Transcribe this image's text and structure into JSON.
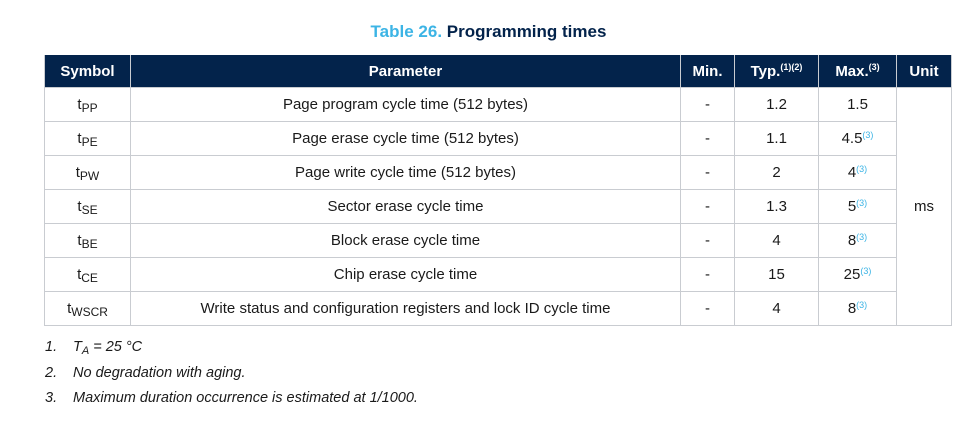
{
  "caption": {
    "label": "Table 26.",
    "title": "Programming times"
  },
  "colors": {
    "header_bg": "#03234b",
    "header_text": "#ffffff",
    "caption_label": "#3cb4e5",
    "footnote_ref": "#3cb4e5",
    "grid": "#c9ccd1"
  },
  "table": {
    "headers": {
      "symbol": "Symbol",
      "parameter": "Parameter",
      "min": "Min.",
      "typ": "Typ.",
      "typ_notes": "(1)(2)",
      "max": "Max.",
      "max_notes": "(3)",
      "unit": "Unit"
    },
    "unit_value": "ms",
    "rows": [
      {
        "sym": "t",
        "sub": "PP",
        "param": "Page program cycle time (512 bytes)",
        "min": "-",
        "typ": "1.2",
        "max": "1.5",
        "max_note": ""
      },
      {
        "sym": "t",
        "sub": "PE",
        "param": "Page erase cycle time (512 bytes)",
        "min": "-",
        "typ": "1.1",
        "max": "4.5",
        "max_note": "(3)"
      },
      {
        "sym": "t",
        "sub": "PW",
        "param": "Page write cycle time (512 bytes)",
        "min": "-",
        "typ": "2",
        "max": "4",
        "max_note": "(3)"
      },
      {
        "sym": "t",
        "sub": "SE",
        "param": "Sector erase cycle time",
        "min": "-",
        "typ": "1.3",
        "max": "5",
        "max_note": "(3)"
      },
      {
        "sym": "t",
        "sub": "BE",
        "param": "Block erase cycle time",
        "min": "-",
        "typ": "4",
        "max": "8",
        "max_note": "(3)"
      },
      {
        "sym": "t",
        "sub": "CE",
        "param": "Chip erase cycle time",
        "min": "-",
        "typ": "15",
        "max": "25",
        "max_note": "(3)"
      },
      {
        "sym": "t",
        "sub": "WSCR",
        "param": "Write status and configuration registers and lock ID cycle time",
        "min": "-",
        "typ": "4",
        "max": "8",
        "max_note": "(3)"
      }
    ]
  },
  "footnotes": [
    {
      "num": "1.",
      "pre": "T",
      "sub": "A",
      "post": " = 25 °C"
    },
    {
      "num": "2.",
      "pre": "No degradation with aging.",
      "sub": "",
      "post": ""
    },
    {
      "num": "3.",
      "pre": "Maximum duration occurrence is estimated at 1/1000.",
      "sub": "",
      "post": ""
    }
  ]
}
